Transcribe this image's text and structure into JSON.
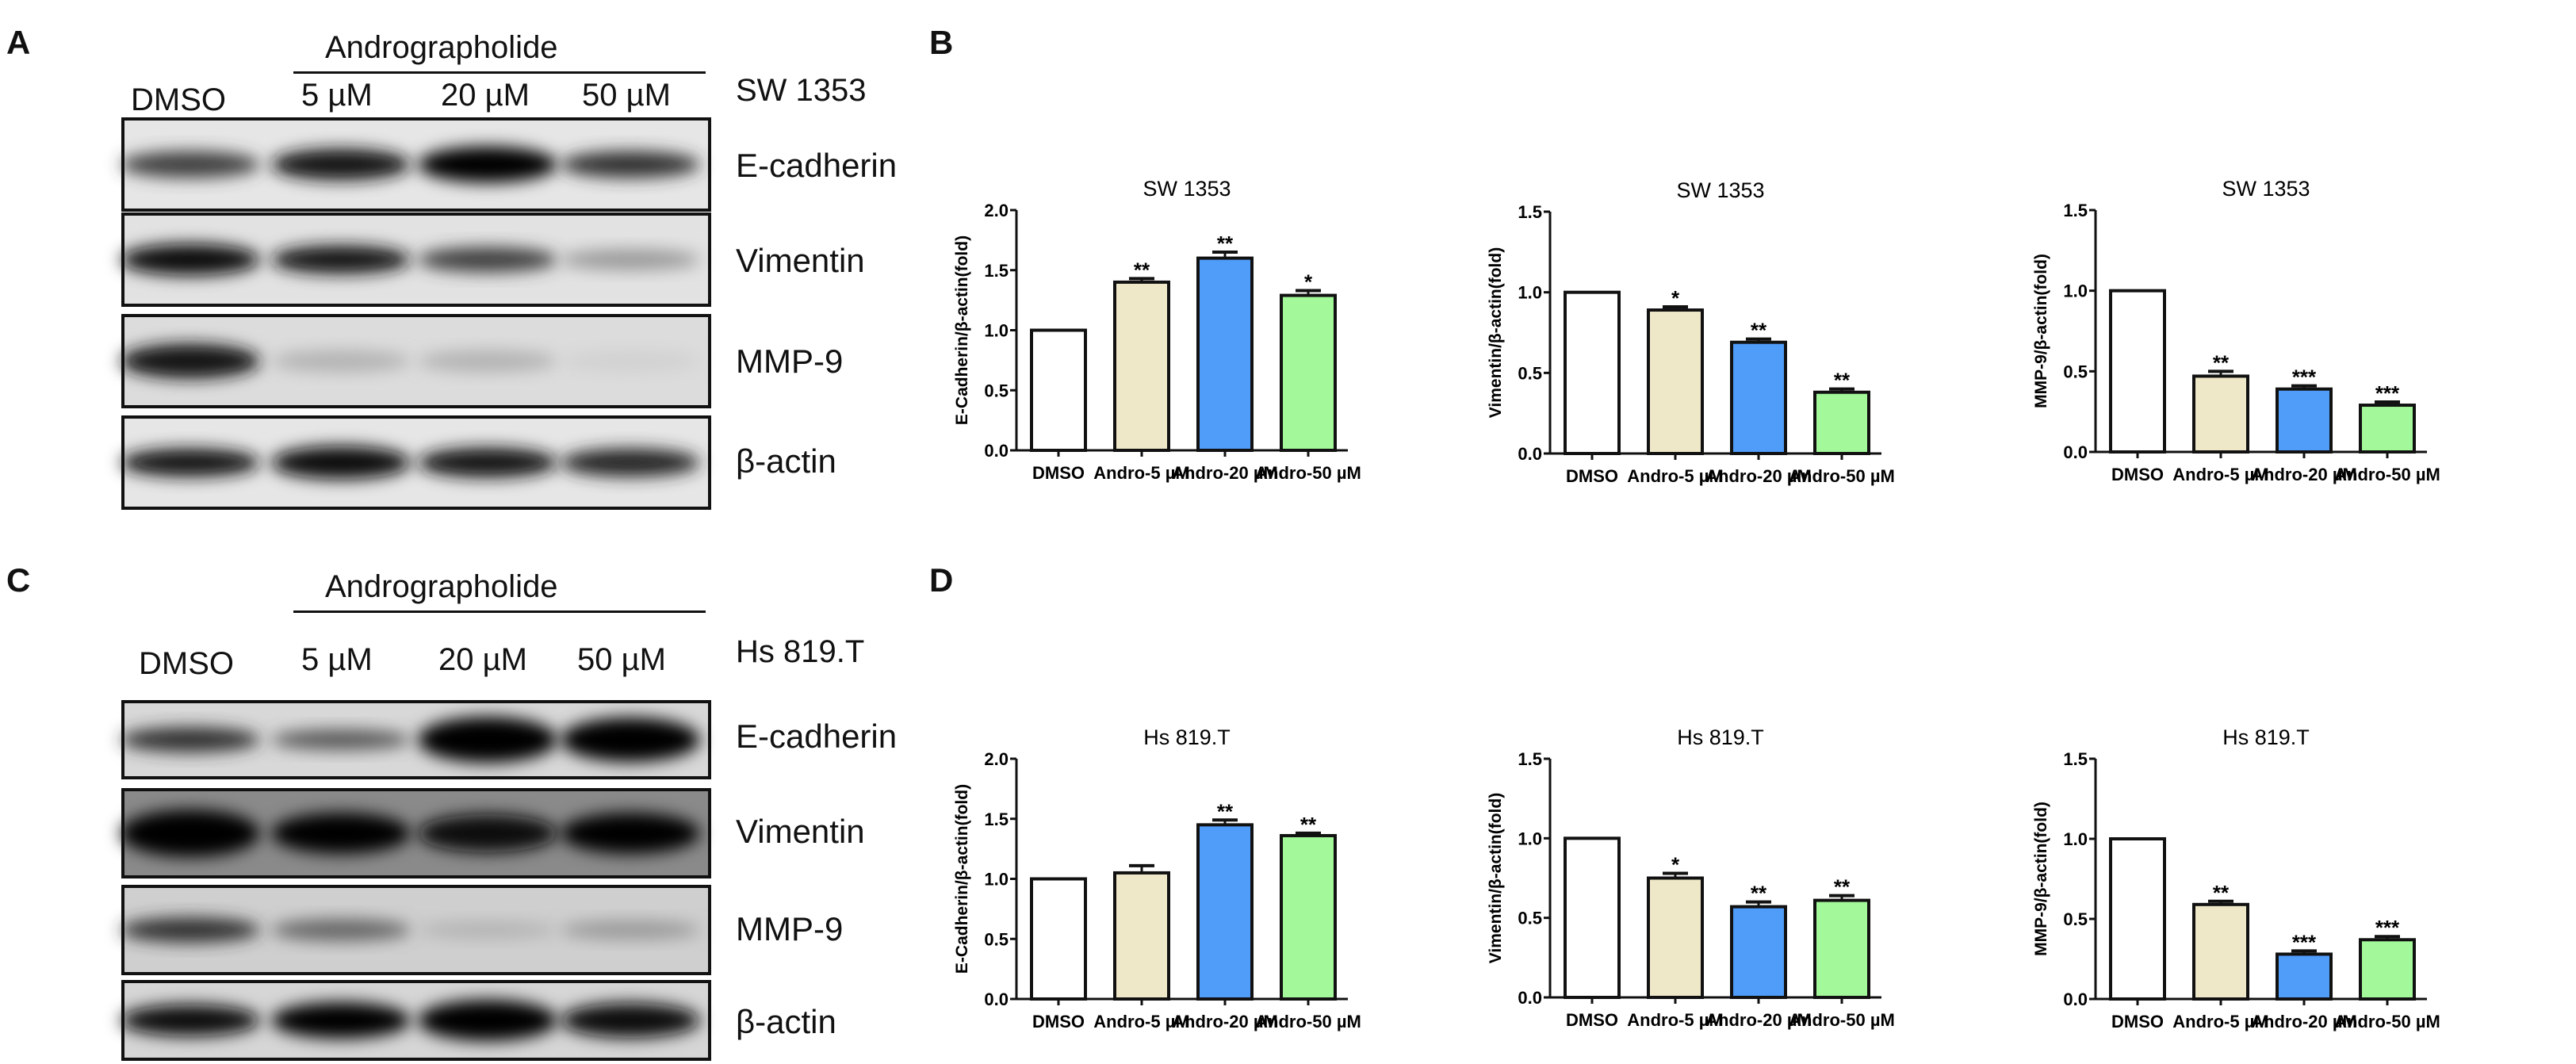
{
  "panels": {
    "A": {
      "letter": "A",
      "treatment": "Andrographolide",
      "cell_line": "SW 1353",
      "lanes": [
        "DMSO",
        "5 µM",
        "20 µM",
        "50 µM"
      ],
      "rows": [
        "E-cadherin",
        "Vimentin",
        "MMP-9",
        "β-actin"
      ]
    },
    "B": {
      "letter": "B"
    },
    "C": {
      "letter": "C",
      "treatment": "Andrographolide",
      "cell_line": "Hs 819.T",
      "lanes": [
        "DMSO",
        "5 µM",
        "20 µM",
        "50 µM"
      ],
      "rows": [
        "E-cadherin",
        "Vimentin",
        "MMP-9",
        "β-actin"
      ]
    },
    "D": {
      "letter": "D"
    }
  },
  "colors": {
    "DMSO": "#ffffff",
    "Andro-5": "#efe8c8",
    "Andro-20": "#4f9cf9",
    "Andro-50": "#a3f89a"
  },
  "chart_data": [
    {
      "type": "bar",
      "panel": "B",
      "title": "SW 1353",
      "ylabel": "E-Cadherin/β-actin(fold)",
      "ylim": [
        0,
        2.0
      ],
      "yticks": [
        "0.0",
        "0.5",
        "1.0",
        "1.5",
        "2.0"
      ],
      "categories": [
        "DMSO",
        "Andro-5 µM",
        "Andro-20 µM",
        "Andro-50 µM"
      ],
      "values": [
        1.0,
        1.4,
        1.6,
        1.29
      ],
      "errors": [
        0,
        0.03,
        0.05,
        0.04
      ],
      "significance": [
        "",
        "**",
        "**",
        "*"
      ]
    },
    {
      "type": "bar",
      "panel": "B",
      "title": "SW 1353",
      "ylabel": "Vimentin/β-actin(fold)",
      "ylim": [
        0,
        1.5
      ],
      "yticks": [
        "0.0",
        "0.5",
        "1.0",
        "1.5"
      ],
      "categories": [
        "DMSO",
        "Andro-5 µM",
        "Andro-20 µM",
        "Andro-50 µM"
      ],
      "values": [
        1.0,
        0.89,
        0.69,
        0.38
      ],
      "errors": [
        0,
        0.02,
        0.02,
        0.02
      ],
      "significance": [
        "",
        "*",
        "**",
        "**"
      ]
    },
    {
      "type": "bar",
      "panel": "B",
      "title": "SW 1353",
      "ylabel": "MMP-9/β-actin(fold)",
      "ylim": [
        0,
        1.5
      ],
      "yticks": [
        "0.0",
        "0.5",
        "1.0",
        "1.5"
      ],
      "categories": [
        "DMSO",
        "Andro-5 µM",
        "Andro-20 µM",
        "Andro-50 µM"
      ],
      "values": [
        1.0,
        0.47,
        0.39,
        0.29
      ],
      "errors": [
        0,
        0.03,
        0.02,
        0.02
      ],
      "significance": [
        "",
        "**",
        "***",
        "***"
      ]
    },
    {
      "type": "bar",
      "panel": "D",
      "title": "Hs 819.T",
      "ylabel": "E-Cadherin/β-actin(fold)",
      "ylim": [
        0,
        2.0
      ],
      "yticks": [
        "0.0",
        "0.5",
        "1.0",
        "1.5",
        "2.0"
      ],
      "categories": [
        "DMSO",
        "Andro-5 µM",
        "Andro-20 µM",
        "Andro-50 µM"
      ],
      "values": [
        1.0,
        1.05,
        1.45,
        1.36
      ],
      "errors": [
        0,
        0.06,
        0.04,
        0.02
      ],
      "significance": [
        "",
        "",
        "**",
        "**"
      ]
    },
    {
      "type": "bar",
      "panel": "D",
      "title": "Hs 819.T",
      "ylabel": "Vimentin/β-actin(fold)",
      "ylim": [
        0,
        1.5
      ],
      "yticks": [
        "0.0",
        "0.5",
        "1.0",
        "1.5"
      ],
      "categories": [
        "DMSO",
        "Andro-5 µM",
        "Andro-20 µM",
        "Andro-50 µM"
      ],
      "values": [
        1.0,
        0.75,
        0.57,
        0.61
      ],
      "errors": [
        0,
        0.03,
        0.03,
        0.03
      ],
      "significance": [
        "",
        "*",
        "**",
        "**"
      ]
    },
    {
      "type": "bar",
      "panel": "D",
      "title": "Hs 819.T",
      "ylabel": "MMP-9/β-actin(fold)",
      "ylim": [
        0,
        1.5
      ],
      "yticks": [
        "0.0",
        "0.5",
        "1.0",
        "1.5"
      ],
      "categories": [
        "DMSO",
        "Andro-5 µM",
        "Andro-20 µM",
        "Andro-50 µM"
      ],
      "values": [
        1.0,
        0.59,
        0.28,
        0.37
      ],
      "errors": [
        0,
        0.02,
        0.02,
        0.02
      ],
      "significance": [
        "",
        "**",
        "***",
        "***"
      ]
    }
  ]
}
